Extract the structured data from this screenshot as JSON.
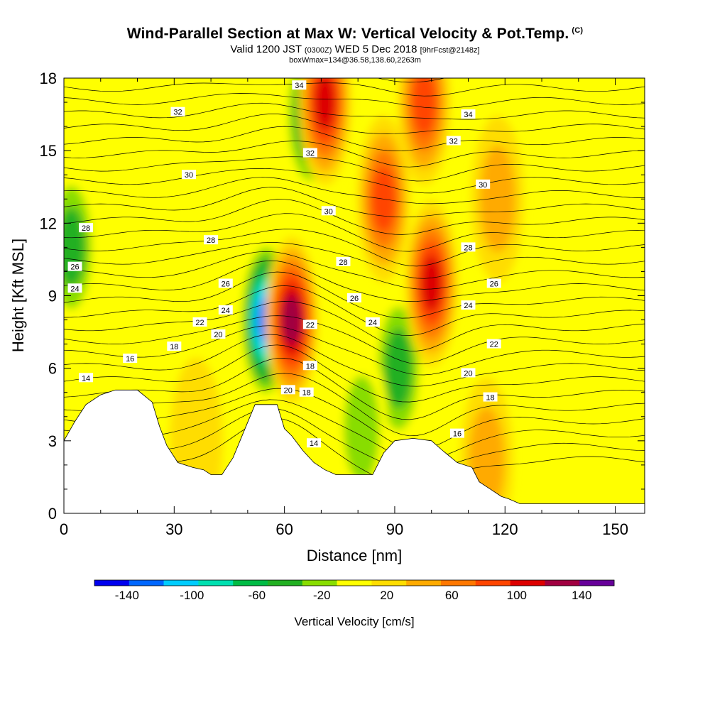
{
  "header": {
    "title": "Wind-Parallel Section at Max W: Vertical Velocity & Pot.Temp.",
    "title_mark": "(C)",
    "valid_prefix": "Valid 1200 JST",
    "valid_utc": "(0300Z)",
    "valid_date": "WED 5 Dec 2018",
    "forecast": "[9hrFcst@2148z]",
    "box_info": "boxWmax=134@36.58,138.60,2263m"
  },
  "chart_data": {
    "type": "heatmap",
    "xlabel": "Distance [nm]",
    "ylabel": "Height [Kft MSL]",
    "xlim": [
      0,
      158
    ],
    "ylim": [
      0,
      18
    ],
    "x_ticks": [
      0,
      30,
      60,
      90,
      120,
      150
    ],
    "y_ticks": [
      0,
      3,
      6,
      9,
      12,
      15,
      18
    ],
    "colorbar": {
      "label": "Vertical Velocity [cm/s]",
      "ticks": [
        "-140",
        "-100",
        "-60",
        "-20",
        "20",
        "60",
        "100",
        "140"
      ],
      "bounds": [
        -160,
        -140,
        -120,
        -100,
        -80,
        -60,
        -40,
        -20,
        0,
        20,
        40,
        60,
        80,
        100,
        120,
        140,
        160
      ],
      "colors": [
        "#0000ee",
        "#0066ff",
        "#00ccff",
        "#00e0b0",
        "#00bb44",
        "#22b022",
        "#88dd00",
        "#ffff00",
        "#ffdd00",
        "#ffaa00",
        "#ff7700",
        "#ff4400",
        "#dd0000",
        "#a00040",
        "#660099"
      ]
    },
    "terrain_kft": [
      [
        0,
        3
      ],
      [
        3,
        3.8
      ],
      [
        6,
        4.5
      ],
      [
        10,
        4.9
      ],
      [
        14,
        5.1
      ],
      [
        20,
        5.1
      ],
      [
        24,
        4.6
      ],
      [
        26,
        3.6
      ],
      [
        28,
        2.8
      ],
      [
        31,
        2.1
      ],
      [
        35,
        1.9
      ],
      [
        38,
        1.8
      ],
      [
        40,
        1.6
      ],
      [
        43,
        1.6
      ],
      [
        46,
        2.3
      ],
      [
        49,
        3.4
      ],
      [
        52,
        4.5
      ],
      [
        58,
        4.5
      ],
      [
        60,
        3.5
      ],
      [
        62,
        3.2
      ],
      [
        65,
        2.6
      ],
      [
        68,
        2.1
      ],
      [
        71,
        1.8
      ],
      [
        74,
        1.6
      ],
      [
        84,
        1.6
      ],
      [
        87,
        2.5
      ],
      [
        90,
        3.0
      ],
      [
        95,
        3.1
      ],
      [
        100,
        3.0
      ],
      [
        103,
        2.6
      ],
      [
        107,
        2.1
      ],
      [
        111,
        1.9
      ],
      [
        113,
        1.3
      ],
      [
        116,
        1.0
      ],
      [
        119,
        0.7
      ],
      [
        121,
        0.6
      ],
      [
        124,
        0.4
      ],
      [
        158,
        0.4
      ]
    ],
    "updraft_cores": [
      {
        "x": 62,
        "y": 8.0,
        "w": 134
      },
      {
        "x": 71,
        "y": 17.0,
        "w": 100
      },
      {
        "x": 87,
        "y": 13.0,
        "w": 80
      },
      {
        "x": 100,
        "y": 9.5,
        "w": 110
      },
      {
        "x": 98,
        "y": 17.0,
        "w": 80
      },
      {
        "x": 115,
        "y": 2.2,
        "w": 40
      },
      {
        "x": 118,
        "y": 13.0,
        "w": 40
      },
      {
        "x": 36,
        "y": 3.0,
        "w": 30
      }
    ],
    "downdraft_cores": [
      {
        "x": 55,
        "y": 8.0,
        "w": -140
      },
      {
        "x": 67,
        "y": 16.5,
        "w": -80
      },
      {
        "x": 2,
        "y": 11.0,
        "w": -60
      },
      {
        "x": 91,
        "y": 6.0,
        "w": -60
      },
      {
        "x": 81,
        "y": 3.5,
        "w": -40
      },
      {
        "x": 31,
        "y": 15.0,
        "w": -30
      },
      {
        "x": 14,
        "y": 9.0,
        "w": -30
      },
      {
        "x": 140,
        "y": 3.0,
        "w": -20
      }
    ],
    "theta_contour_labels": [
      {
        "x": 6,
        "y": 5.6,
        "text": "14"
      },
      {
        "x": 18,
        "y": 6.4,
        "text": "16"
      },
      {
        "x": 30,
        "y": 6.9,
        "text": "18"
      },
      {
        "x": 37,
        "y": 7.9,
        "text": "22"
      },
      {
        "x": 42,
        "y": 7.4,
        "text": "20"
      },
      {
        "x": 44,
        "y": 8.4,
        "text": "24"
      },
      {
        "x": 44,
        "y": 9.5,
        "text": "26"
      },
      {
        "x": 40,
        "y": 11.3,
        "text": "28"
      },
      {
        "x": 34,
        "y": 14.0,
        "text": "30"
      },
      {
        "x": 31,
        "y": 16.6,
        "text": "32"
      },
      {
        "x": 3,
        "y": 9.3,
        "text": "24"
      },
      {
        "x": 3,
        "y": 10.2,
        "text": "26"
      },
      {
        "x": 6,
        "y": 11.8,
        "text": "28"
      },
      {
        "x": 64,
        "y": 17.7,
        "text": "34"
      },
      {
        "x": 67,
        "y": 14.9,
        "text": "32"
      },
      {
        "x": 72,
        "y": 12.5,
        "text": "30"
      },
      {
        "x": 76,
        "y": 10.4,
        "text": "28"
      },
      {
        "x": 79,
        "y": 8.9,
        "text": "26"
      },
      {
        "x": 84,
        "y": 7.9,
        "text": "24"
      },
      {
        "x": 67,
        "y": 7.8,
        "text": "22"
      },
      {
        "x": 67,
        "y": 6.1,
        "text": "18"
      },
      {
        "x": 66,
        "y": 5.0,
        "text": "18"
      },
      {
        "x": 61,
        "y": 5.1,
        "text": "20"
      },
      {
        "x": 68,
        "y": 2.9,
        "text": "14"
      },
      {
        "x": 110,
        "y": 16.5,
        "text": "34"
      },
      {
        "x": 106,
        "y": 15.4,
        "text": "32"
      },
      {
        "x": 114,
        "y": 13.6,
        "text": "30"
      },
      {
        "x": 110,
        "y": 11.0,
        "text": "28"
      },
      {
        "x": 117,
        "y": 9.5,
        "text": "26"
      },
      {
        "x": 110,
        "y": 8.6,
        "text": "24"
      },
      {
        "x": 117,
        "y": 7.0,
        "text": "22"
      },
      {
        "x": 110,
        "y": 5.8,
        "text": "20"
      },
      {
        "x": 116,
        "y": 4.8,
        "text": "18"
      },
      {
        "x": 107,
        "y": 3.3,
        "text": "16"
      }
    ]
  }
}
